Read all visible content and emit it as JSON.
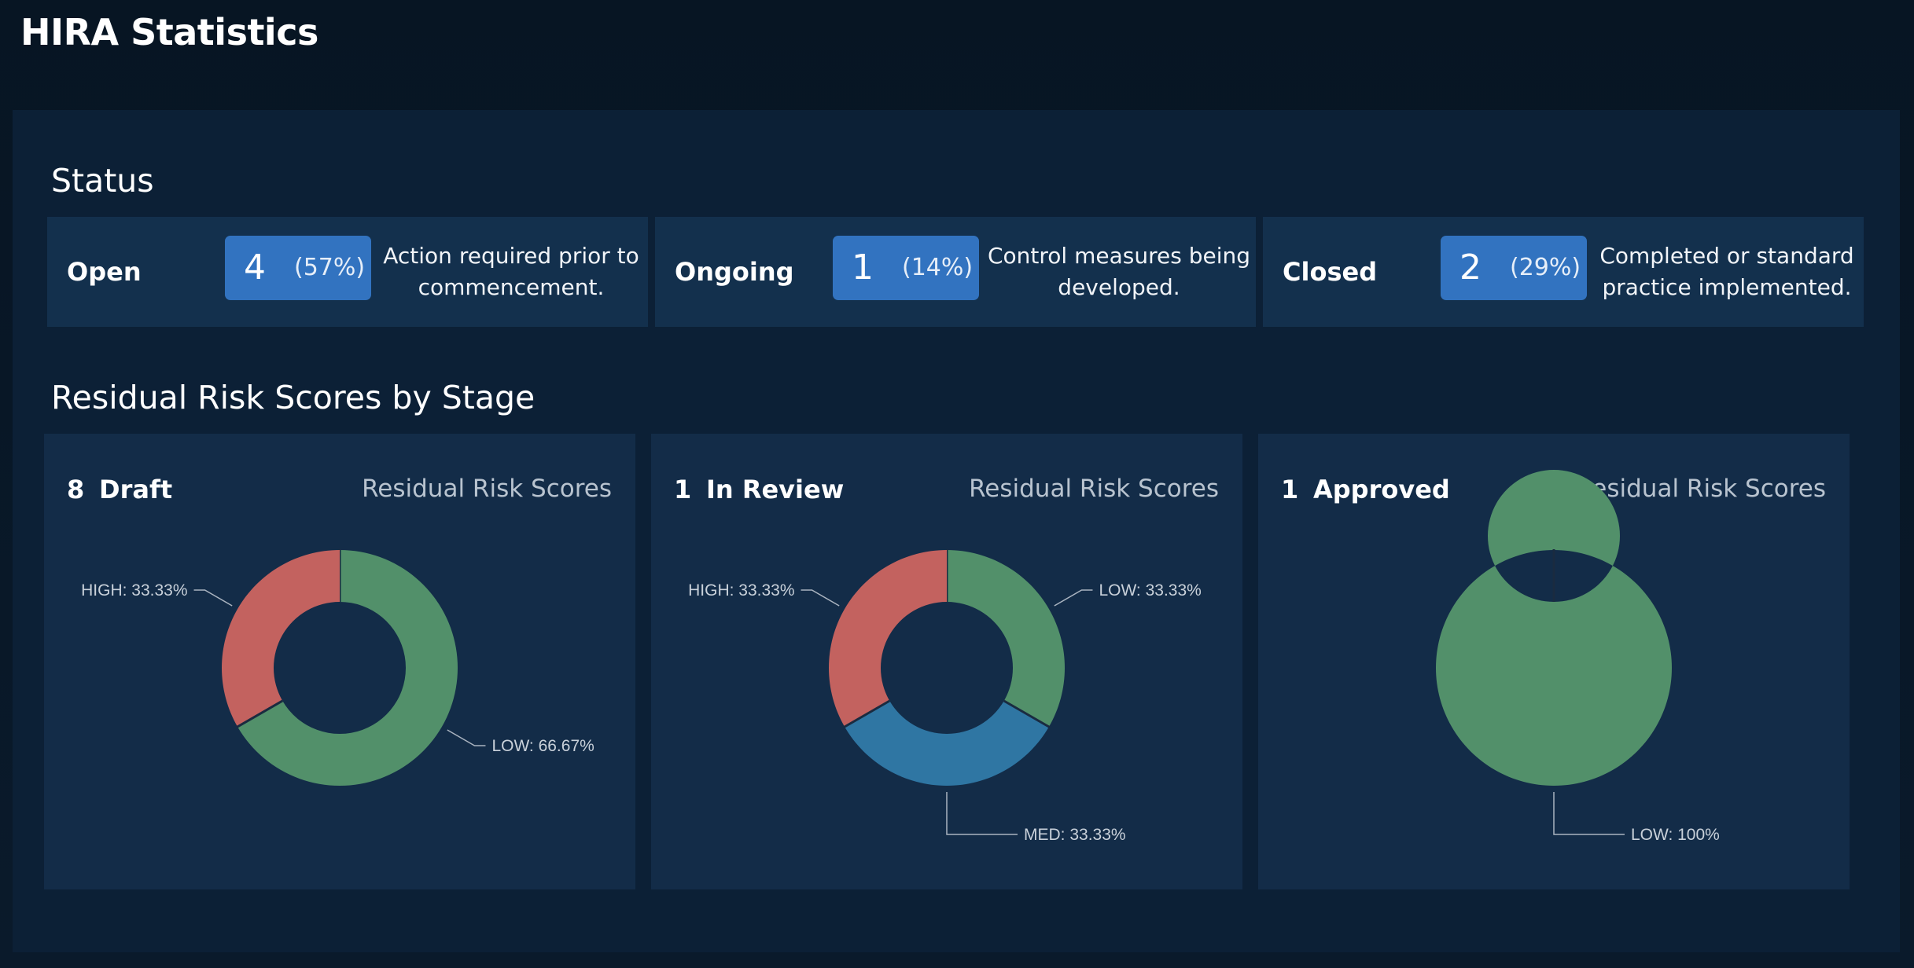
{
  "page": {
    "title": "HIRA Statistics"
  },
  "status_section": {
    "title": "Status",
    "cards": [
      {
        "name": "Open",
        "count": "4",
        "percent": "(57%)",
        "description": "Action required prior to commencement."
      },
      {
        "name": "Ongoing",
        "count": "1",
        "percent": "(14%)",
        "description": "Control measures being developed."
      },
      {
        "name": "Closed",
        "count": "2",
        "percent": "(29%)",
        "description": "Completed or standard practice implemented."
      }
    ]
  },
  "risk_section": {
    "title": "Residual Risk Scores by Stage"
  },
  "colors": {
    "HIGH": "#c3625f",
    "MED": "#2f76a3",
    "LOW": "#52906a",
    "badge": "#3273c0"
  },
  "chart_data": [
    {
      "type": "pie",
      "count": "8",
      "stage": "Draft",
      "title": "Residual Risk Scores",
      "slices": [
        {
          "name": "LOW",
          "value": 66.67,
          "label": "LOW: 66.67%"
        },
        {
          "name": "HIGH",
          "value": 33.33,
          "label": "HIGH: 33.33%"
        }
      ]
    },
    {
      "type": "pie",
      "count": "1",
      "stage": "In Review",
      "title": "Residual Risk Scores",
      "slices": [
        {
          "name": "LOW",
          "value": 33.33,
          "label": "LOW: 33.33%"
        },
        {
          "name": "MED",
          "value": 33.33,
          "label": "MED: 33.33%"
        },
        {
          "name": "HIGH",
          "value": 33.33,
          "label": "HIGH: 33.33%"
        }
      ]
    },
    {
      "type": "pie",
      "count": "1",
      "stage": "Approved",
      "title": "Residual Risk Scores",
      "slices": [
        {
          "name": "LOW",
          "value": 100,
          "label": "LOW: 100%"
        }
      ]
    }
  ]
}
